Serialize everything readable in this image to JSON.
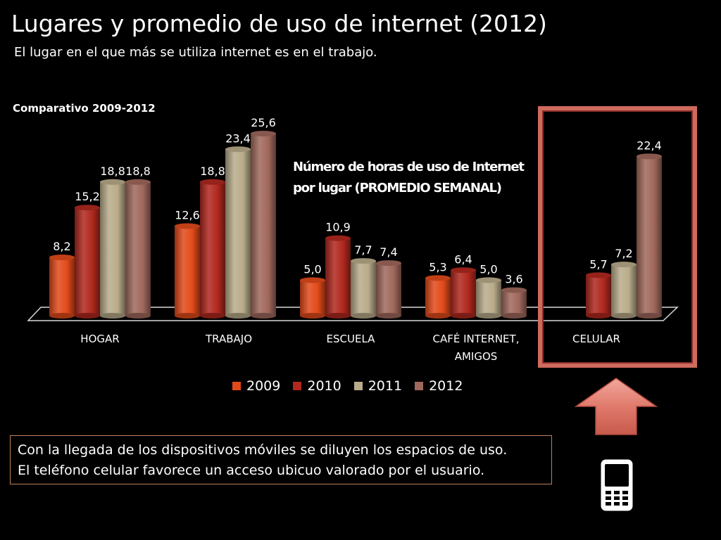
{
  "title": "Lugares y promedio de uso de internet (2012)",
  "subtitle": "El lugar en el que más se utiliza internet es en el trabajo.",
  "comparativo": "Comparativo 2009-2012",
  "inner_title_line1": "Número de horas de uso de Internet",
  "inner_title_line2": "por lugar (PROMEDIO SEMANAL)",
  "note": {
    "line1": "Con la llegada de los dispositivos móviles se diluyen los espacios de uso.",
    "line2": "El teléfono celular favorece un acceso ubicuo valorado por el usuario."
  },
  "colors": {
    "2009": "#e34a1a",
    "2010": "#b0281e",
    "2011": "#b9ac8a",
    "2012": "#a0685c",
    "highlight": "#cf6a5e"
  },
  "icons": [
    "up-arrow-icon",
    "mobile-phone-icon"
  ],
  "chart_data": {
    "type": "bar",
    "title": "Número de horas de uso de Internet por lugar (PROMEDIO SEMANAL)",
    "categories": [
      "HOGAR",
      "TRABAJO",
      "ESCUELA",
      "CAFÉ INTERNET, AMIGOS",
      "CELULAR"
    ],
    "category_lines": [
      [
        "HOGAR"
      ],
      [
        "TRABAJO"
      ],
      [
        "ESCUELA"
      ],
      [
        "CAFÉ INTERNET,",
        "AMIGOS"
      ],
      [
        "CELULAR"
      ]
    ],
    "series": [
      {
        "name": "2009",
        "values": [
          8.2,
          12.6,
          5.0,
          5.3,
          null
        ]
      },
      {
        "name": "2010",
        "values": [
          15.2,
          18.8,
          10.9,
          6.4,
          5.7
        ]
      },
      {
        "name": "2011",
        "values": [
          18.8,
          23.4,
          7.7,
          5.0,
          7.2
        ]
      },
      {
        "name": "2012",
        "values": [
          18.8,
          25.6,
          7.4,
          3.6,
          22.4
        ]
      }
    ],
    "ylim": [
      0,
      25.6
    ],
    "grid": false,
    "legend_position": "bottom",
    "decimal_separator": ","
  }
}
